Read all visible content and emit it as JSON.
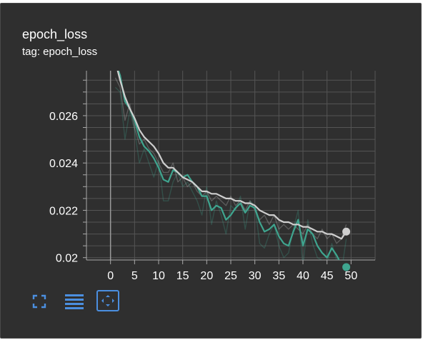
{
  "card": {
    "title": "epoch_loss",
    "subtitle": "tag: epoch_loss"
  },
  "toolbar": [
    {
      "name": "expand-button",
      "icon": "fullscreen-icon"
    },
    {
      "name": "toggle-y-log-button",
      "icon": "lines-icon"
    },
    {
      "name": "fit-domain-button",
      "icon": "fit-domain-icon"
    }
  ],
  "colors": {
    "background": "#2f2f2f",
    "grid": "#555555",
    "axis": "#aaaaaa",
    "tick_text": "#ffffff",
    "series_teal": "#3fa58f",
    "series_grey": "#cfcfcf",
    "toolbar_icon": "#4b8fe0"
  },
  "chart_data": {
    "type": "line",
    "title": "epoch_loss",
    "xlim": [
      -5,
      55
    ],
    "ylim": [
      0.0199,
      0.0279
    ],
    "xticks": [
      0,
      5,
      10,
      15,
      20,
      25,
      30,
      35,
      40,
      45,
      50
    ],
    "xtick_labels": [
      "0",
      "5",
      "10",
      "15",
      "20",
      "25",
      "30",
      "35",
      "40",
      "45",
      "50"
    ],
    "yticks": [
      0.02,
      0.022,
      0.024,
      0.026
    ],
    "ytick_labels": [
      "0.02",
      "0.022",
      "0.024",
      "0.026"
    ],
    "grid": true,
    "series": [
      {
        "color": "#3fa58f",
        "smoothed": true,
        "x": [
          1,
          2,
          3,
          4,
          5,
          6,
          7,
          8,
          9,
          10,
          11,
          12,
          13,
          14,
          15,
          16,
          17,
          18,
          19,
          20,
          21,
          22,
          23,
          24,
          25,
          26,
          27,
          28,
          29,
          30,
          31,
          32,
          33,
          34,
          35,
          36,
          37,
          38,
          39,
          40,
          41,
          42,
          43,
          44,
          45,
          46,
          47,
          48,
          49
        ],
        "values": [
          0.0283,
          0.0277,
          0.0266,
          0.0263,
          0.0258,
          0.0251,
          0.0247,
          0.0245,
          0.0242,
          0.0238,
          0.0233,
          0.0232,
          0.0237,
          0.0236,
          0.0234,
          0.0235,
          0.0232,
          0.023,
          0.0226,
          0.0226,
          0.022,
          0.0222,
          0.0221,
          0.0216,
          0.0218,
          0.0221,
          0.0223,
          0.0219,
          0.0222,
          0.0221,
          0.0215,
          0.0211,
          0.0212,
          0.0214,
          0.0209,
          0.0206,
          0.0205,
          0.0211,
          0.0216,
          0.0205,
          0.0212,
          0.021,
          0.0205,
          0.0202,
          0.02,
          0.0204,
          0.0201,
          0.0197,
          0.0196
        ],
        "last_point": [
          49,
          0.0196
        ]
      },
      {
        "color": "#cfcfcf",
        "smoothed": true,
        "x": [
          1,
          2,
          3,
          4,
          5,
          6,
          7,
          8,
          9,
          10,
          11,
          12,
          13,
          14,
          15,
          16,
          17,
          18,
          19,
          20,
          21,
          22,
          23,
          24,
          25,
          26,
          27,
          28,
          29,
          30,
          31,
          32,
          33,
          34,
          35,
          36,
          37,
          38,
          39,
          40,
          41,
          42,
          43,
          44,
          45,
          46,
          47,
          48,
          49
        ],
        "values": [
          0.0283,
          0.0275,
          0.0268,
          0.0263,
          0.0259,
          0.0254,
          0.0251,
          0.0249,
          0.0247,
          0.0244,
          0.024,
          0.0238,
          0.0238,
          0.0236,
          0.0234,
          0.0233,
          0.0232,
          0.023,
          0.0228,
          0.0228,
          0.0227,
          0.0227,
          0.0226,
          0.0225,
          0.0225,
          0.0224,
          0.0224,
          0.0223,
          0.0223,
          0.0222,
          0.022,
          0.0219,
          0.0218,
          0.0218,
          0.0216,
          0.0215,
          0.0215,
          0.0214,
          0.0214,
          0.0213,
          0.0213,
          0.0212,
          0.0211,
          0.0211,
          0.021,
          0.021,
          0.0209,
          0.0208,
          0.0211
        ],
        "last_point": [
          49,
          0.0211
        ]
      },
      {
        "color": "#3fa58f",
        "raw": true,
        "x": [
          1,
          2,
          3,
          4,
          5,
          6,
          7,
          8,
          9,
          10,
          11,
          12,
          13,
          14,
          15,
          16,
          17,
          18,
          19,
          20,
          21,
          22,
          23,
          24,
          25,
          26,
          27,
          28,
          29,
          30,
          31,
          32,
          33,
          34,
          35,
          36,
          37,
          38,
          39,
          40,
          41,
          42,
          43,
          44,
          45,
          46,
          47,
          48,
          49
        ],
        "values": [
          0.0272,
          0.027,
          0.025,
          0.0262,
          0.0254,
          0.024,
          0.0246,
          0.024,
          0.0234,
          0.0241,
          0.0224,
          0.0224,
          0.0232,
          0.0236,
          0.023,
          0.0232,
          0.0228,
          0.0224,
          0.0218,
          0.023,
          0.0214,
          0.0224,
          0.0218,
          0.021,
          0.0222,
          0.022,
          0.0226,
          0.0212,
          0.0224,
          0.0222,
          0.0206,
          0.0204,
          0.021,
          0.0214,
          0.0205,
          0.02,
          0.0202,
          0.0212,
          0.022,
          0.0196,
          0.0216,
          0.0206,
          0.02,
          0.0199,
          0.0197,
          0.0206,
          0.0199,
          0.0194,
          0.0208
        ]
      },
      {
        "color": "#cfcfcf",
        "raw": true,
        "x": [
          1,
          2,
          3,
          4,
          5,
          6,
          7,
          8,
          9,
          10,
          11,
          12,
          13,
          14,
          15,
          16,
          17,
          18,
          19,
          20,
          21,
          22,
          23,
          24,
          25,
          26,
          27,
          28,
          29,
          30,
          31,
          32,
          33,
          34,
          35,
          36,
          37,
          38,
          39,
          40,
          41,
          42,
          43,
          44,
          45,
          46,
          47,
          48,
          49
        ],
        "values": [
          0.0276,
          0.0272,
          0.0258,
          0.0265,
          0.0255,
          0.0248,
          0.025,
          0.0246,
          0.0244,
          0.024,
          0.0236,
          0.0236,
          0.024,
          0.0232,
          0.0234,
          0.023,
          0.0232,
          0.0228,
          0.0226,
          0.0228,
          0.0224,
          0.0226,
          0.0224,
          0.0222,
          0.0226,
          0.0222,
          0.0224,
          0.022,
          0.0224,
          0.022,
          0.0216,
          0.0218,
          0.0214,
          0.0218,
          0.0212,
          0.0214,
          0.0212,
          0.0214,
          0.0212,
          0.021,
          0.0214,
          0.021,
          0.0208,
          0.0212,
          0.0208,
          0.021,
          0.0206,
          0.0208,
          0.0214
        ]
      }
    ]
  }
}
